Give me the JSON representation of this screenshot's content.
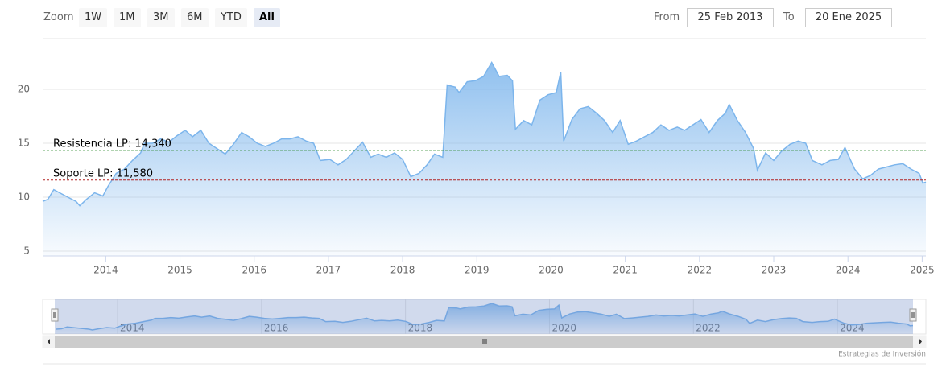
{
  "range_selector": {
    "zoom_label": "Zoom",
    "buttons": [
      "1W",
      "1M",
      "3M",
      "6M",
      "YTD",
      "All"
    ],
    "selected": 5,
    "from_label": "From",
    "from_value": "25 Feb 2013",
    "to_label": "To",
    "to_value": "20 Ene 2025"
  },
  "chart_data": {
    "type": "area",
    "color": "#7cb5ec",
    "x": [
      2013.15,
      2013.22,
      2013.3,
      2013.38,
      2013.49,
      2013.6,
      2013.65,
      2013.74,
      2013.85,
      2013.96,
      2014.03,
      2014.14,
      2014.25,
      2014.36,
      2014.47,
      2014.52,
      2014.63,
      2014.74,
      2014.85,
      2014.96,
      2015.07,
      2015.17,
      2015.28,
      2015.39,
      2015.5,
      2015.61,
      2015.72,
      2015.83,
      2015.93,
      2016.04,
      2016.15,
      2016.26,
      2016.37,
      2016.48,
      2016.59,
      2016.7,
      2016.8,
      2016.89,
      2017.02,
      2017.13,
      2017.24,
      2017.35,
      2017.46,
      2017.57,
      2017.67,
      2017.78,
      2017.89,
      2018.0,
      2018.11,
      2018.22,
      2018.33,
      2018.43,
      2018.54,
      2018.6,
      2018.71,
      2018.76,
      2018.87,
      2018.98,
      2019.09,
      2019.2,
      2019.3,
      2019.41,
      2019.48,
      2019.52,
      2019.63,
      2019.74,
      2019.85,
      2019.96,
      2020.07,
      2020.13,
      2020.17,
      2020.28,
      2020.39,
      2020.5,
      2020.61,
      2020.72,
      2020.83,
      2020.93,
      2021.04,
      2021.15,
      2021.26,
      2021.37,
      2021.48,
      2021.59,
      2021.7,
      2021.8,
      2021.91,
      2022.02,
      2022.13,
      2022.24,
      2022.35,
      2022.4,
      2022.51,
      2022.62,
      2022.73,
      2022.78,
      2022.89,
      2023.0,
      2023.11,
      2023.22,
      2023.33,
      2023.43,
      2023.52,
      2023.65,
      2023.76,
      2023.87,
      2023.96,
      2024.03,
      2024.09,
      2024.2,
      2024.3,
      2024.41,
      2024.52,
      2024.63,
      2024.74,
      2024.85,
      2024.96,
      2025.01,
      2025.05
    ],
    "values": [
      9.6,
      9.8,
      10.7,
      10.4,
      10.0,
      9.6,
      9.2,
      9.8,
      10.4,
      10.1,
      11.0,
      12.2,
      12.6,
      13.4,
      14.1,
      15.0,
      15.0,
      15.4,
      15.1,
      15.7,
      16.2,
      15.6,
      16.2,
      15.0,
      14.5,
      14.0,
      14.9,
      16.0,
      15.6,
      15.0,
      14.7,
      15.0,
      15.4,
      15.4,
      15.6,
      15.2,
      15.0,
      13.4,
      13.5,
      13.0,
      13.5,
      14.3,
      15.1,
      13.7,
      14.0,
      13.7,
      14.1,
      13.5,
      11.9,
      12.2,
      13.0,
      14.0,
      13.7,
      20.4,
      20.2,
      19.7,
      20.7,
      20.8,
      21.2,
      22.5,
      21.2,
      21.3,
      20.8,
      16.3,
      17.1,
      16.7,
      19.0,
      19.5,
      19.7,
      21.6,
      15.2,
      17.2,
      18.2,
      18.4,
      17.8,
      17.1,
      16.0,
      17.1,
      14.9,
      15.2,
      15.6,
      16.0,
      16.7,
      16.2,
      16.5,
      16.2,
      16.7,
      17.2,
      16.0,
      17.1,
      17.8,
      18.6,
      17.1,
      16.0,
      14.5,
      12.5,
      14.1,
      13.4,
      14.3,
      14.9,
      15.2,
      15.0,
      13.4,
      13.0,
      13.4,
      13.5,
      14.6,
      13.5,
      12.6,
      11.7,
      12.0,
      12.6,
      12.8,
      13.0,
      13.1,
      12.6,
      12.2,
      11.3,
      11.4
    ],
    "xlim": [
      2013.15,
      2025.05
    ],
    "xticks": [
      2014,
      2015,
      2016,
      2017,
      2018,
      2019,
      2020,
      2021,
      2022,
      2023,
      2024,
      2025
    ],
    "ylim": [
      4.55,
      24.7
    ],
    "yticks": [
      5,
      10,
      15,
      20
    ],
    "grid": true,
    "annotations": [
      {
        "label": "Resistencia LP: 14,340",
        "value": 14.34,
        "color": "#2e8b2e"
      },
      {
        "label": "Soporte LP: 11,580",
        "value": 11.58,
        "color": "#b22222"
      }
    ],
    "navigator_xticks": [
      2014,
      2016,
      2018,
      2020,
      2022,
      2024
    ],
    "credits": "Estrategias de Inversión"
  }
}
